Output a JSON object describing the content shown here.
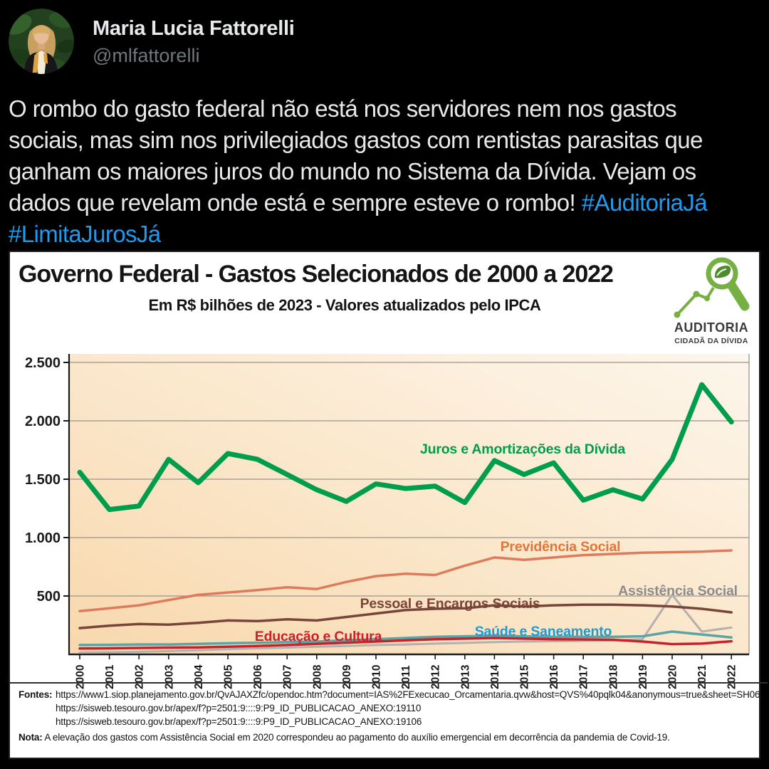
{
  "profile": {
    "name": "Maria Lucia Fattorelli",
    "handle": "@mlfattorelli"
  },
  "tweet": {
    "hashtag_color": "#1d9bf0",
    "lines": [
      [
        {
          "t": "O rombo do gasto federal não está nos servidores nem nos gastos"
        }
      ],
      [
        {
          "t": "sociais, mas sim nos privilegiados gastos com rentistas parasitas que"
        }
      ],
      [
        {
          "t": "ganham os maiores juros do mundo no Sistema da Dívida. Vejam os"
        }
      ],
      [
        {
          "t": "dados que revelam onde está e sempre esteve o rombo! "
        },
        {
          "t": "#AuditoriaJá",
          "hashtag": true
        }
      ],
      [
        {
          "t": "#LimitaJurosJá",
          "hashtag": true
        }
      ]
    ]
  },
  "chart_card": {
    "title": "Governo Federal - Gastos Selecionados de 2000 a 2022",
    "subtitle": "Em R$ bilhões de 2023 - Valores atualizados pelo IPCA",
    "logo": {
      "line1": "AUDITORIA",
      "line2": "CIDADÃ DA DÍVIDA",
      "color": "#76b043"
    },
    "fontes_label": "Fontes:",
    "fontes": [
      "https://www1.siop.planejamento.gov.br/QvAJAXZfc/opendoc.htm?document=IAS%2FExecucao_Orcamentaria.qvw&host=QVS%40pqlk04&anonymous=true&sheet=SH06",
      "https://sisweb.tesouro.gov.br/apex/f?p=2501:9::::9:P9_ID_PUBLICACAO_ANEXO:19110",
      "https://sisweb.tesouro.gov.br/apex/f?p=2501:9::::9:P9_ID_PUBLICACAO_ANEXO:19106"
    ],
    "nota_label": "Nota:",
    "nota": "A elevação dos gastos com Assistência Social em 2020 correspondeu ao pagamento do auxílio emergencial em decorrência da pandemia de Covid-19."
  },
  "chart_data": {
    "type": "line",
    "title": "Governo Federal - Gastos Selecionados de 2000 a 2022",
    "subtitle": "Em R$ bilhões de 2023 - Valores atualizados pelo IPCA",
    "unit": "R$ bilhões de 2023 (IPCA)",
    "x": [
      2000,
      2001,
      2002,
      2003,
      2004,
      2005,
      2006,
      2007,
      2008,
      2009,
      2010,
      2011,
      2012,
      2013,
      2014,
      2015,
      2016,
      2017,
      2018,
      2019,
      2020,
      2021,
      2022
    ],
    "ylim": [
      0,
      2500
    ],
    "grid": true,
    "legend_position": "inline-labels",
    "yticks": [
      {
        "value": 2500,
        "label": "2.500"
      },
      {
        "value": 2000,
        "label": "2.000"
      },
      {
        "value": 1500,
        "label": "1.500"
      },
      {
        "value": 1000,
        "label": "1.000"
      },
      {
        "value": 500,
        "label": "500"
      }
    ],
    "series": [
      {
        "name": "Assistência Social",
        "slug": "assistencia-social",
        "color": "#b4b0ae",
        "label_color": "#8c8c8c",
        "width": 3,
        "values": [
          15,
          18,
          22,
          28,
          35,
          45,
          52,
          58,
          65,
          72,
          80,
          85,
          92,
          98,
          105,
          110,
          112,
          115,
          118,
          130,
          510,
          195,
          230
        ]
      },
      {
        "name": "Saúde e Saneamento",
        "slug": "saude-e-saneamento",
        "color": "#5ba5a4",
        "label_color": "#1a9cd9",
        "width": 3.5,
        "values": [
          80,
          82,
          85,
          85,
          90,
          95,
          100,
          105,
          110,
          120,
          130,
          140,
          150,
          155,
          160,
          155,
          150,
          150,
          150,
          155,
          195,
          170,
          145
        ]
      },
      {
        "name": "Educação e Cultura",
        "slug": "educacao-e-cultura",
        "color": "#c8232c",
        "label_color": "#c8232c",
        "width": 3.5,
        "values": [
          50,
          52,
          55,
          58,
          60,
          65,
          72,
          80,
          90,
          100,
          110,
          120,
          130,
          135,
          140,
          135,
          130,
          128,
          125,
          110,
          88,
          92,
          112
        ]
      },
      {
        "name": "Pessoal e Encargos Sociais",
        "slug": "pessoal-e-encargos-sociais",
        "color": "#77453a",
        "label_color": "#7a4438",
        "width": 3.5,
        "values": [
          225,
          245,
          260,
          255,
          270,
          290,
          285,
          300,
          290,
          320,
          350,
          380,
          390,
          395,
          420,
          410,
          420,
          425,
          425,
          420,
          410,
          390,
          360
        ]
      },
      {
        "name": "Previdência Social",
        "slug": "previdencia-social",
        "color": "#dd7c5d",
        "label_color": "#e0763c",
        "width": 3.5,
        "values": [
          370,
          395,
          420,
          465,
          510,
          530,
          550,
          575,
          560,
          620,
          670,
          690,
          680,
          760,
          830,
          810,
          830,
          850,
          860,
          870,
          875,
          880,
          890
        ]
      },
      {
        "name": "Juros e Amortizações da Dívida",
        "slug": "juros-e-amortizacoes-da-divida",
        "color": "#009e4c",
        "label_color": "#009e4c",
        "width": 7,
        "values": [
          1560,
          1240,
          1270,
          1670,
          1470,
          1720,
          1670,
          1540,
          1410,
          1310,
          1460,
          1420,
          1440,
          1300,
          1660,
          1540,
          1640,
          1320,
          1410,
          1330,
          1670,
          2310,
          1990
        ]
      }
    ]
  }
}
